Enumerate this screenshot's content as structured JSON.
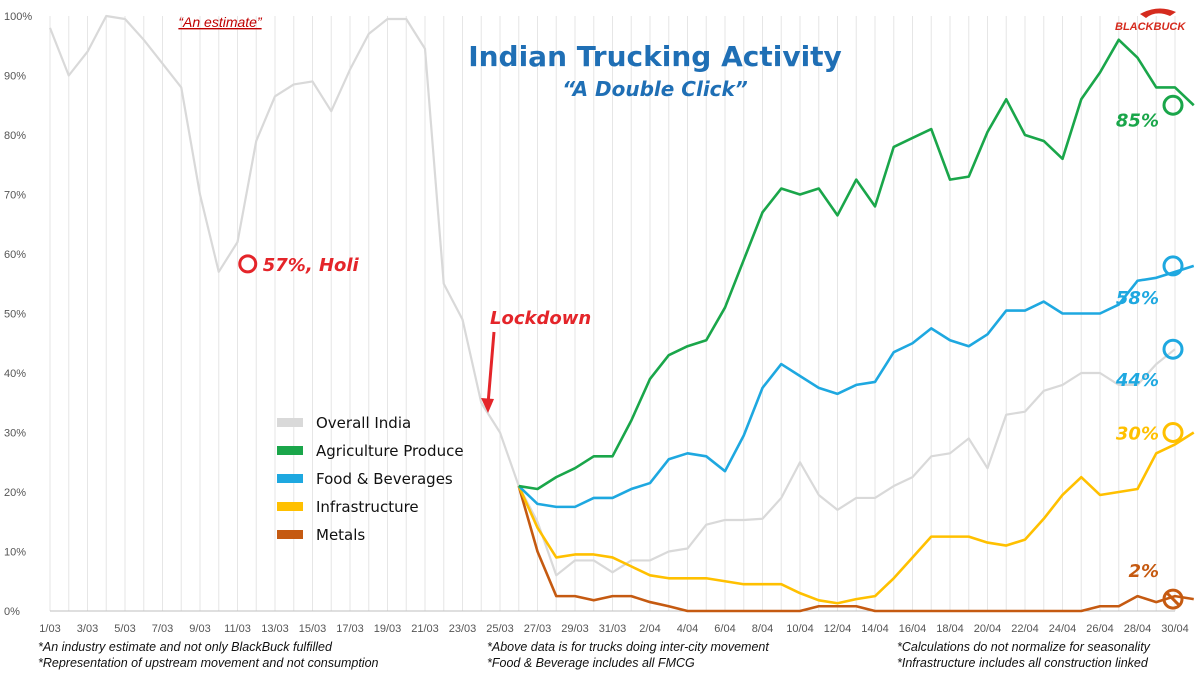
{
  "title": "Indian Trucking Activity",
  "subtitle": "“A Double Click”",
  "brand": "BLACKBUCK",
  "estimate_note": "“An estimate”",
  "lockdown_label": "Lockdown",
  "holi_label": "57%, Holi",
  "legend": [
    {
      "label": "Overall India",
      "color": "#d9d9d9"
    },
    {
      "label": "Agriculture Produce",
      "color": "#1aa64a"
    },
    {
      "label": "Food & Beverages",
      "color": "#1ea8e0"
    },
    {
      "label": "Infrastructure",
      "color": "#ffc000"
    },
    {
      "label": "Metals",
      "color": "#c55a11"
    }
  ],
  "end_labels": {
    "agri": "85%",
    "food": "58%",
    "overall": "44%",
    "infra": "30%",
    "metals": "2%"
  },
  "footnotes": {
    "left1": "*An industry estimate and not only BlackBuck fulfilled",
    "left2": "*Representation of upstream movement and not consumption",
    "mid1": "*Above data is for trucks doing inter-city movement",
    "mid2": "*Food & Beverage includes all FMCG",
    "right1": "*Calculations do not normalize for seasonality",
    "right2": "*Infrastructure includes all construction linked"
  },
  "chart_data": {
    "type": "line",
    "ylim": [
      0,
      100
    ],
    "y_ticks": [
      "0%",
      "10%",
      "20%",
      "30%",
      "40%",
      "50%",
      "60%",
      "70%",
      "80%",
      "90%",
      "100%"
    ],
    "x_tick_labels": [
      "1/03",
      "3/03",
      "5/03",
      "7/03",
      "9/03",
      "11/03",
      "13/03",
      "15/03",
      "17/03",
      "19/03",
      "21/03",
      "23/03",
      "25/03",
      "27/03",
      "29/03",
      "31/03",
      "2/04",
      "4/04",
      "6/04",
      "8/04",
      "10/04",
      "12/04",
      "14/04",
      "16/04",
      "18/04",
      "20/04",
      "22/04",
      "24/04",
      "26/04",
      "28/04",
      "30/04"
    ],
    "series": [
      {
        "name": "Overall India",
        "color": "#d9d9d9",
        "start_index": 0,
        "values": [
          98,
          90,
          94,
          100,
          99.5,
          96,
          92,
          88,
          70,
          57,
          62,
          79,
          86.5,
          88.5,
          89,
          84,
          91,
          97,
          99.5,
          99.5,
          94.5,
          55,
          49,
          35,
          30,
          21,
          15,
          6,
          8.5,
          8.5,
          6.5,
          8.5,
          8.5,
          10,
          10.5,
          14.5,
          15.3,
          15.3,
          15.5,
          19,
          25,
          19.5,
          17,
          19,
          19,
          21,
          22.5,
          26,
          26.5,
          29,
          24,
          33,
          33.5,
          37,
          38,
          40,
          40,
          38,
          38,
          41.5,
          44
        ]
      },
      {
        "name": "Agriculture Produce",
        "color": "#1aa64a",
        "start_index": 25,
        "values": [
          21,
          20.5,
          22.5,
          24,
          26,
          26,
          32,
          39,
          43,
          44.5,
          45.5,
          51,
          59,
          67,
          71,
          70,
          71,
          66.5,
          72.5,
          68,
          78,
          79.5,
          81,
          72.5,
          73,
          80.5,
          86,
          80,
          79,
          76,
          86,
          90.5,
          96,
          93,
          88,
          88,
          85
        ]
      },
      {
        "name": "Food & Beverages",
        "color": "#1ea8e0",
        "start_index": 25,
        "values": [
          21,
          18,
          17.5,
          17.5,
          19,
          19,
          20.5,
          21.5,
          25.5,
          26.5,
          26,
          23.5,
          29.5,
          37.5,
          41.5,
          39.5,
          37.5,
          36.5,
          38,
          38.5,
          43.5,
          45,
          47.5,
          45.5,
          44.5,
          46.5,
          50.5,
          50.5,
          52,
          50,
          50,
          50,
          51.5,
          55.5,
          56,
          57,
          58
        ]
      },
      {
        "name": "Infrastructure",
        "color": "#ffc000",
        "start_index": 25,
        "values": [
          21,
          14,
          9,
          9.5,
          9.5,
          9,
          7.5,
          6,
          5.5,
          5.5,
          5.5,
          5,
          4.5,
          4.5,
          4.5,
          3,
          1.8,
          1.3,
          2,
          2.5,
          5.5,
          9,
          12.5,
          12.5,
          12.5,
          11.5,
          11,
          12,
          15.5,
          19.5,
          22.5,
          19.5,
          20,
          20.5,
          26.5,
          28,
          30
        ]
      },
      {
        "name": "Metals",
        "color": "#c55a11",
        "start_index": 25,
        "values": [
          21,
          10,
          2.5,
          2.5,
          1.8,
          2.5,
          2.5,
          1.5,
          0.8,
          0,
          0,
          0,
          0,
          0,
          0,
          0,
          0.8,
          0.8,
          0.8,
          0,
          0,
          0,
          0,
          0,
          0,
          0,
          0,
          0,
          0,
          0,
          0,
          0.8,
          0.8,
          2.5,
          1.5,
          2.5,
          2
        ]
      }
    ],
    "annotations": [
      {
        "text": "57%, Holi",
        "x": "10/03",
        "y": 57
      },
      {
        "text": "Lockdown",
        "x": "25/03"
      },
      {
        "text": "85%",
        "x": "30/04",
        "y": 85
      },
      {
        "text": "58%",
        "x": "30/04",
        "y": 58
      },
      {
        "text": "44%",
        "x": "30/04",
        "y": 44
      },
      {
        "text": "30%",
        "x": "30/04",
        "y": 30
      },
      {
        "text": "2%",
        "x": "30/04",
        "y": 2
      }
    ]
  }
}
